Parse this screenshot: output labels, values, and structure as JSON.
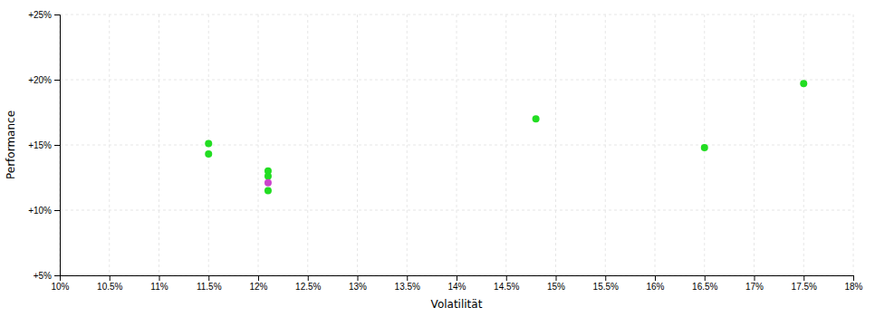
{
  "chart_data": {
    "type": "scatter",
    "x_label": "Volatilität",
    "y_label": "Performance",
    "series": [
      {
        "color": "#22dd22",
        "x": [
          0.115,
          0.115,
          0.121,
          0.121,
          0.121,
          0.148,
          0.165,
          0.175
        ],
        "values": [
          0.151,
          0.143,
          0.13,
          0.126,
          0.115,
          0.17,
          0.148,
          0.197
        ]
      },
      {
        "color": "#cc44cc",
        "x": [
          0.121
        ],
        "values": [
          0.121
        ]
      }
    ],
    "xlim": [
      0.1,
      0.18
    ],
    "ylim": [
      0.05,
      0.25
    ],
    "xticks": [
      {
        "value": 0.1,
        "label": "10%"
      },
      {
        "value": 0.105,
        "label": "10.5%"
      },
      {
        "value": 0.11,
        "label": "11%"
      },
      {
        "value": 0.115,
        "label": "11.5%"
      },
      {
        "value": 0.12,
        "label": "12%"
      },
      {
        "value": 0.125,
        "label": "12.5%"
      },
      {
        "value": 0.13,
        "label": "13%"
      },
      {
        "value": 0.135,
        "label": "13.5%"
      },
      {
        "value": 0.14,
        "label": "14%"
      },
      {
        "value": 0.145,
        "label": "14.5%"
      },
      {
        "value": 0.15,
        "label": "15%"
      },
      {
        "value": 0.155,
        "label": "15.5%"
      },
      {
        "value": 0.16,
        "label": "16%"
      },
      {
        "value": 0.165,
        "label": "16.5%"
      },
      {
        "value": 0.17,
        "label": "17%"
      },
      {
        "value": 0.175,
        "label": "17.5%"
      },
      {
        "value": 0.18,
        "label": "18%"
      }
    ],
    "yticks": [
      {
        "value": 0.05,
        "label": "+5%"
      },
      {
        "value": 0.1,
        "label": "+10%"
      },
      {
        "value": 0.15,
        "label": "+15%"
      },
      {
        "value": 0.2,
        "label": "+20%"
      },
      {
        "value": 0.25,
        "label": "+25%"
      }
    ],
    "grid": true
  }
}
